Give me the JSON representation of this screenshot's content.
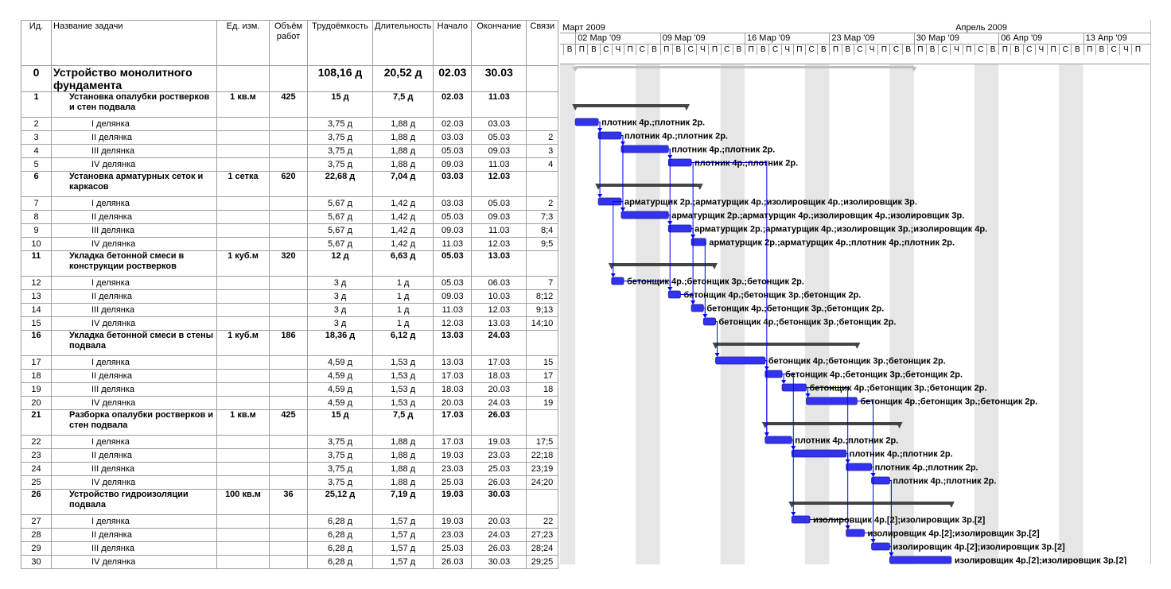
{
  "columns": {
    "id": "Ид.",
    "name": "Название задачи",
    "unit": "Ед. изм.",
    "volume": "Объём работ",
    "labor": "Трудоёмкость",
    "duration": "Длительность",
    "start": "Начало",
    "finish": "Окончание",
    "links": "Связи"
  },
  "timescale": {
    "months": [
      "Март 2009",
      "Апрель 2009"
    ],
    "weeks": [
      "02 Мар '09",
      "09 Мар '09",
      "16 Мар '09",
      "23 Мар '09",
      "30 Мар '09",
      "06 Апр '09",
      "13 Апр '09"
    ],
    "day_letters": [
      "В",
      "П",
      "В",
      "С",
      "Ч",
      "П",
      "С"
    ]
  },
  "tasks": [
    {
      "id": "0",
      "name": "Устройство монолитного фундамента",
      "unit": "",
      "volume": "",
      "labor": "108,16 д",
      "duration": "20,52 д",
      "start": "02.03",
      "finish": "30.03",
      "links": "",
      "level": 0,
      "start_day": 2.0,
      "end_day": 30.0
    },
    {
      "id": "1",
      "name": "Установка опалубки ростверков и стен подвала",
      "unit": "1 кв.м",
      "volume": "425",
      "labor": "15 д",
      "duration": "7,5 д",
      "start": "02.03",
      "finish": "11.03",
      "links": "",
      "level": 1,
      "start_day": 2.0,
      "end_day": 11.2
    },
    {
      "id": "2",
      "name": "I делянка",
      "unit": "",
      "volume": "",
      "labor": "3,75 д",
      "duration": "1,88 д",
      "start": "02.03",
      "finish": "03.03",
      "links": "",
      "level": 2,
      "start_day": 2.0,
      "end_day": 3.9,
      "resources": "плотник 4р.;плотник 2р."
    },
    {
      "id": "3",
      "name": "II делянка",
      "unit": "",
      "volume": "",
      "labor": "3,75 д",
      "duration": "1,88 д",
      "start": "03.03",
      "finish": "05.03",
      "links": "2",
      "level": 2,
      "start_day": 3.9,
      "end_day": 5.8,
      "resources": "плотник 4р.;плотник 2р."
    },
    {
      "id": "4",
      "name": "III делянка",
      "unit": "",
      "volume": "",
      "labor": "3,75 д",
      "duration": "1,88 д",
      "start": "05.03",
      "finish": "09.03",
      "links": "3",
      "level": 2,
      "start_day": 5.8,
      "end_day": 9.7,
      "resources": "плотник 4р.;плотник 2р."
    },
    {
      "id": "5",
      "name": "IV делянка",
      "unit": "",
      "volume": "",
      "labor": "3,75 д",
      "duration": "1,88 д",
      "start": "09.03",
      "finish": "11.03",
      "links": "4",
      "level": 2,
      "start_day": 9.7,
      "end_day": 11.6,
      "resources": "плотник 4р.;плотник 2р."
    },
    {
      "id": "6",
      "name": "Установка арматурных сеток и каркасов",
      "unit": "1 сетка",
      "volume": "620",
      "labor": "22,68 д",
      "duration": "7,04 д",
      "start": "03.03",
      "finish": "12.03",
      "links": "",
      "level": 1,
      "start_day": 3.9,
      "end_day": 12.3
    },
    {
      "id": "7",
      "name": "I делянка",
      "unit": "",
      "volume": "",
      "labor": "5,67 д",
      "duration": "1,42 д",
      "start": "03.03",
      "finish": "05.03",
      "links": "2",
      "level": 2,
      "start_day": 3.9,
      "end_day": 5.8,
      "resources": "арматурщик 2р.;арматурщик 4р.;изолировщик 4р.;изолировщик 3р."
    },
    {
      "id": "8",
      "name": "II делянка",
      "unit": "",
      "volume": "",
      "labor": "5,67 д",
      "duration": "1,42 д",
      "start": "05.03",
      "finish": "09.03",
      "links": "7;3",
      "level": 2,
      "start_day": 5.8,
      "end_day": 9.7,
      "resources": "арматурщик 2р.;арматурщик 4р.;изолировщик 4р.;изолировщик 3р."
    },
    {
      "id": "9",
      "name": "III делянка",
      "unit": "",
      "volume": "",
      "labor": "5,67 д",
      "duration": "1,42 д",
      "start": "09.03",
      "finish": "11.03",
      "links": "8;4",
      "level": 2,
      "start_day": 9.7,
      "end_day": 11.6,
      "resources": "арматурщик 2р.;арматурщик 4р.;изолировщик 3р.;изолировщик 4р."
    },
    {
      "id": "10",
      "name": "IV делянка",
      "unit": "",
      "volume": "",
      "labor": "5,67 д",
      "duration": "1,42 д",
      "start": "11.03",
      "finish": "12.03",
      "links": "9;5",
      "level": 2,
      "start_day": 11.6,
      "end_day": 12.8,
      "resources": "арматурщик 2р.;арматурщик 4р.;плотник 4р.;плотник 2р."
    },
    {
      "id": "11",
      "name": "Укладка бетонной смеси в конструкции ростверков",
      "unit": "1 куб.м",
      "volume": "320",
      "labor": "12 д",
      "duration": "6,63 д",
      "start": "05.03",
      "finish": "13.03",
      "links": "",
      "level": 1,
      "start_day": 5.0,
      "end_day": 13.5
    },
    {
      "id": "12",
      "name": "I делянка",
      "unit": "",
      "volume": "",
      "labor": "3 д",
      "duration": "1 д",
      "start": "05.03",
      "finish": "06.03",
      "links": "7",
      "level": 2,
      "start_day": 5.0,
      "end_day": 6.0,
      "resources": "бетонщик 4р.;бетонщик 3р.;бетонщик 2р."
    },
    {
      "id": "13",
      "name": "II делянка",
      "unit": "",
      "volume": "",
      "labor": "3 д",
      "duration": "1 д",
      "start": "09.03",
      "finish": "10.03",
      "links": "8;12",
      "level": 2,
      "start_day": 9.7,
      "end_day": 10.7,
      "resources": "бетонщик 4р.;бетонщик 3р.;бетонщик 2р."
    },
    {
      "id": "14",
      "name": "III делянка",
      "unit": "",
      "volume": "",
      "labor": "3 д",
      "duration": "1 д",
      "start": "11.03",
      "finish": "12.03",
      "links": "9;13",
      "level": 2,
      "start_day": 11.6,
      "end_day": 12.6,
      "resources": "бетонщик 4р.;бетонщик 3р.;бетонщик 2р."
    },
    {
      "id": "15",
      "name": "IV делянка",
      "unit": "",
      "volume": "",
      "labor": "3 д",
      "duration": "1 д",
      "start": "12.03",
      "finish": "13.03",
      "links": "14;10",
      "level": 2,
      "start_day": 12.6,
      "end_day": 13.6,
      "resources": "бетонщик 4р.;бетонщик 3р.;бетонщик 2р."
    },
    {
      "id": "16",
      "name": "Укладка бетонной смеси в стены подвала",
      "unit": "1 куб.м",
      "volume": "186",
      "labor": "18,36 д",
      "duration": "6,12 д",
      "start": "13.03",
      "finish": "24.03",
      "links": "",
      "level": 1,
      "start_day": 13.6,
      "end_day": 25.3
    },
    {
      "id": "17",
      "name": "I делянка",
      "unit": "",
      "volume": "",
      "labor": "4,59 д",
      "duration": "1,53 д",
      "start": "13.03",
      "finish": "17.03",
      "links": "15",
      "level": 2,
      "start_day": 13.6,
      "end_day": 17.7,
      "resources": "бетонщик 4р.;бетонщик 3р.;бетонщик 2р."
    },
    {
      "id": "18",
      "name": "II делянка",
      "unit": "",
      "volume": "",
      "labor": "4,59 д",
      "duration": "1,53 д",
      "start": "17.03",
      "finish": "18.03",
      "links": "17",
      "level": 2,
      "start_day": 17.7,
      "end_day": 19.1,
      "resources": "бетонщик 4р.;бетонщик 3р.;бетонщик 2р."
    },
    {
      "id": "19",
      "name": "III делянка",
      "unit": "",
      "volume": "",
      "labor": "4,59 д",
      "duration": "1,53 д",
      "start": "18.03",
      "finish": "20.03",
      "links": "18",
      "level": 2,
      "start_day": 19.1,
      "end_day": 21.1,
      "resources": "бетонщик 4р.;бетонщик 3р.;бетонщик 2р."
    },
    {
      "id": "20",
      "name": "IV делянка",
      "unit": "",
      "volume": "",
      "labor": "4,59 д",
      "duration": "1,53 д",
      "start": "20.03",
      "finish": "24.03",
      "links": "19",
      "level": 2,
      "start_day": 21.1,
      "end_day": 25.3,
      "resources": "бетонщик 4р.;бетонщик 3р.;бетонщик 2р."
    },
    {
      "id": "21",
      "name": "Разборка опалубки ростверков и стен подвала",
      "unit": "1 кв.м",
      "volume": "425",
      "labor": "15 д",
      "duration": "7,5 д",
      "start": "17.03",
      "finish": "26.03",
      "links": "",
      "level": 1,
      "start_day": 17.7,
      "end_day": 28.8
    },
    {
      "id": "22",
      "name": "I делянка",
      "unit": "",
      "volume": "",
      "labor": "3,75 д",
      "duration": "1,88 д",
      "start": "17.03",
      "finish": "19.03",
      "links": "17;5",
      "level": 2,
      "start_day": 17.7,
      "end_day": 19.9,
      "resources": "плотник 4р.;плотник 2р."
    },
    {
      "id": "23",
      "name": "II делянка",
      "unit": "",
      "volume": "",
      "labor": "3,75 д",
      "duration": "1,88 д",
      "start": "19.03",
      "finish": "23.03",
      "links": "22;18",
      "level": 2,
      "start_day": 19.9,
      "end_day": 24.4,
      "resources": "плотник 4р.;плотник 2р."
    },
    {
      "id": "24",
      "name": "III делянка",
      "unit": "",
      "volume": "",
      "labor": "3,75 д",
      "duration": "1,88 д",
      "start": "23.03",
      "finish": "25.03",
      "links": "23;19",
      "level": 2,
      "start_day": 24.4,
      "end_day": 26.5,
      "resources": "плотник 4р.;плотник 2р."
    },
    {
      "id": "25",
      "name": "IV делянка",
      "unit": "",
      "volume": "",
      "labor": "3,75 д",
      "duration": "1,88 д",
      "start": "25.03",
      "finish": "26.03",
      "links": "24;20",
      "level": 2,
      "start_day": 26.5,
      "end_day": 28.0,
      "resources": "плотник 4р.;плотник 2р."
    },
    {
      "id": "26",
      "name": "Устройство гидроизоляции подвала",
      "unit": "100 кв.м",
      "volume": "36",
      "labor": "25,12 д",
      "duration": "7,19 д",
      "start": "19.03",
      "finish": "30.03",
      "links": "",
      "level": 1,
      "start_day": 19.9,
      "end_day": 33.1
    },
    {
      "id": "27",
      "name": "I делянка",
      "unit": "",
      "volume": "",
      "labor": "6,28 д",
      "duration": "1,57 д",
      "start": "19.03",
      "finish": "20.03",
      "links": "22",
      "level": 2,
      "start_day": 19.9,
      "end_day": 21.4,
      "resources": "изолировщик 4р.[2];изолировщик 3р.[2]"
    },
    {
      "id": "28",
      "name": "II делянка",
      "unit": "",
      "volume": "",
      "labor": "6,28 д",
      "duration": "1,57 д",
      "start": "23.03",
      "finish": "24.03",
      "links": "27;23",
      "level": 2,
      "start_day": 24.4,
      "end_day": 25.9,
      "resources": "изолировщик 4р.[2];изолировщик 3р.[2]"
    },
    {
      "id": "29",
      "name": "III делянка",
      "unit": "",
      "volume": "",
      "labor": "6,28 д",
      "duration": "1,57 д",
      "start": "25.03",
      "finish": "26.03",
      "links": "28;24",
      "level": 2,
      "start_day": 26.5,
      "end_day": 28.0,
      "resources": "изолировщик 4р.[2];изолировщик 3р.[2]"
    },
    {
      "id": "30",
      "name": "IV делянка",
      "unit": "",
      "volume": "",
      "labor": "6,28 д",
      "duration": "1,57 д",
      "start": "26.03",
      "finish": "30.03",
      "links": "29;25",
      "level": 2,
      "start_day": 28.0,
      "end_day": 33.1,
      "resources": "изолировщик 4р.[2];изолировщик 3р.[2]"
    }
  ],
  "colors": {
    "task_bar": "#3333ee",
    "summary_bar": "#444444",
    "link_line": "#0000ff",
    "weekend_shade": "#e6e6e6",
    "grid_line": "#9c9c9c"
  }
}
